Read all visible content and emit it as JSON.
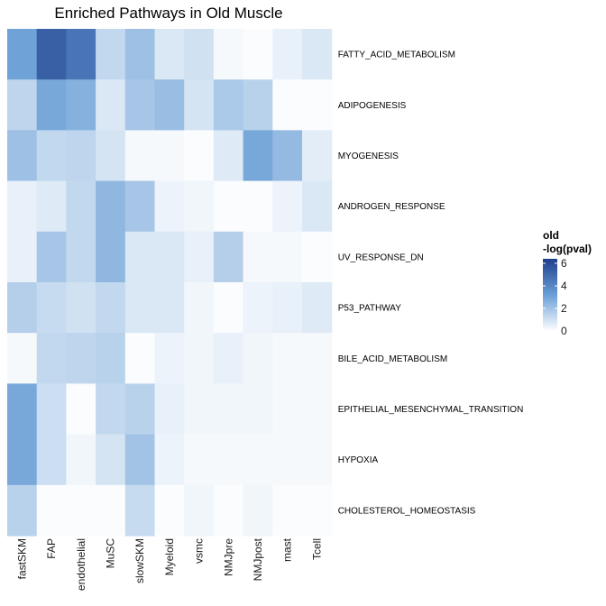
{
  "chart_data": {
    "type": "heatmap",
    "title": "Enriched Pathways in Old Muscle",
    "columns": [
      "fastSKM",
      "FAP",
      "endothelial",
      "MuSC",
      "slowSKM",
      "Myeloid",
      "vsmc",
      "NMJpre",
      "NMJpost",
      "mast",
      "Tcell"
    ],
    "rows": [
      "FATTY_ACID_METABOLISM",
      "ADIPOGENESIS",
      "MYOGENESIS",
      "ANDROGEN_RESPONSE",
      "UV_RESPONSE_DN",
      "P53_PATHWAY",
      "BILE_ACID_METABOLISM",
      "EPITHELIAL_MESENCHYMAL_TRANSITION",
      "HYPOXIA",
      "CHOLESTEROL_HOMEOSTASIS"
    ],
    "values": [
      [
        3.1,
        5.3,
        4.6,
        1.3,
        2.1,
        0.8,
        1.0,
        0.2,
        0.1,
        0.5,
        0.8
      ],
      [
        1.4,
        2.9,
        2.6,
        0.8,
        1.9,
        2.2,
        0.9,
        1.8,
        1.5,
        0.1,
        0.1
      ],
      [
        2.1,
        1.3,
        1.4,
        0.9,
        0.2,
        0.2,
        0.1,
        0.7,
        2.9,
        2.3,
        0.6
      ],
      [
        0.5,
        0.7,
        1.3,
        2.4,
        1.9,
        0.4,
        0.3,
        0.1,
        0.1,
        0.4,
        0.8
      ],
      [
        0.5,
        1.9,
        1.3,
        2.4,
        0.8,
        0.8,
        0.5,
        1.6,
        0.2,
        0.2,
        0.1
      ],
      [
        1.6,
        1.2,
        1.0,
        1.3,
        0.8,
        0.8,
        0.3,
        0.1,
        0.4,
        0.5,
        0.7
      ],
      [
        0.2,
        1.3,
        1.4,
        1.5,
        0.1,
        0.4,
        0.3,
        0.5,
        0.3,
        0.2,
        0.2
      ],
      [
        2.9,
        1.1,
        0.1,
        1.3,
        1.5,
        0.5,
        0.3,
        0.3,
        0.3,
        0.2,
        0.2
      ],
      [
        2.9,
        1.1,
        0.3,
        0.9,
        2.0,
        0.4,
        0.2,
        0.2,
        0.2,
        0.2,
        0.2
      ],
      [
        1.5,
        0.1,
        0.1,
        0.1,
        1.2,
        0.1,
        0.3,
        0.1,
        0.3,
        0.1,
        0.1
      ]
    ],
    "scale": {
      "min": 0,
      "max": 6.4,
      "colors": [
        "#ffffff",
        "#6a9fd6",
        "#1f3f8c"
      ]
    },
    "legend": {
      "title_line1": "old",
      "title_line2": "-log(pval)",
      "ticks": [
        0,
        2,
        4,
        6
      ],
      "tick_labels": [
        "0",
        "2",
        "4",
        "6"
      ],
      "placement": "right"
    }
  }
}
